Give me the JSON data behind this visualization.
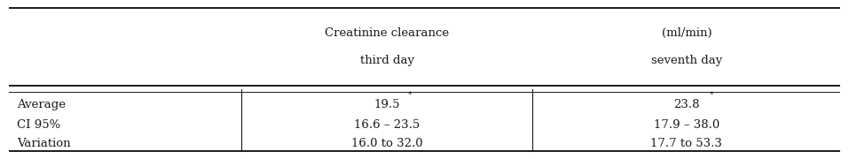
{
  "col_headers": [
    [
      "Creatinine clearance",
      "third day"
    ],
    [
      "(ml/min)",
      "seventh day"
    ]
  ],
  "row_labels": [
    "Average",
    "CI 95%",
    "Variation"
  ],
  "col1_values": [
    "19.5*",
    "16.6 – 23.5",
    "16.0 to 32.0"
  ],
  "col2_values": [
    "23.8*",
    "17.9 – 38.0",
    "17.7 to 53.3"
  ],
  "background_color": "#ffffff",
  "text_color": "#1a1a1a",
  "font_size": 9.5
}
